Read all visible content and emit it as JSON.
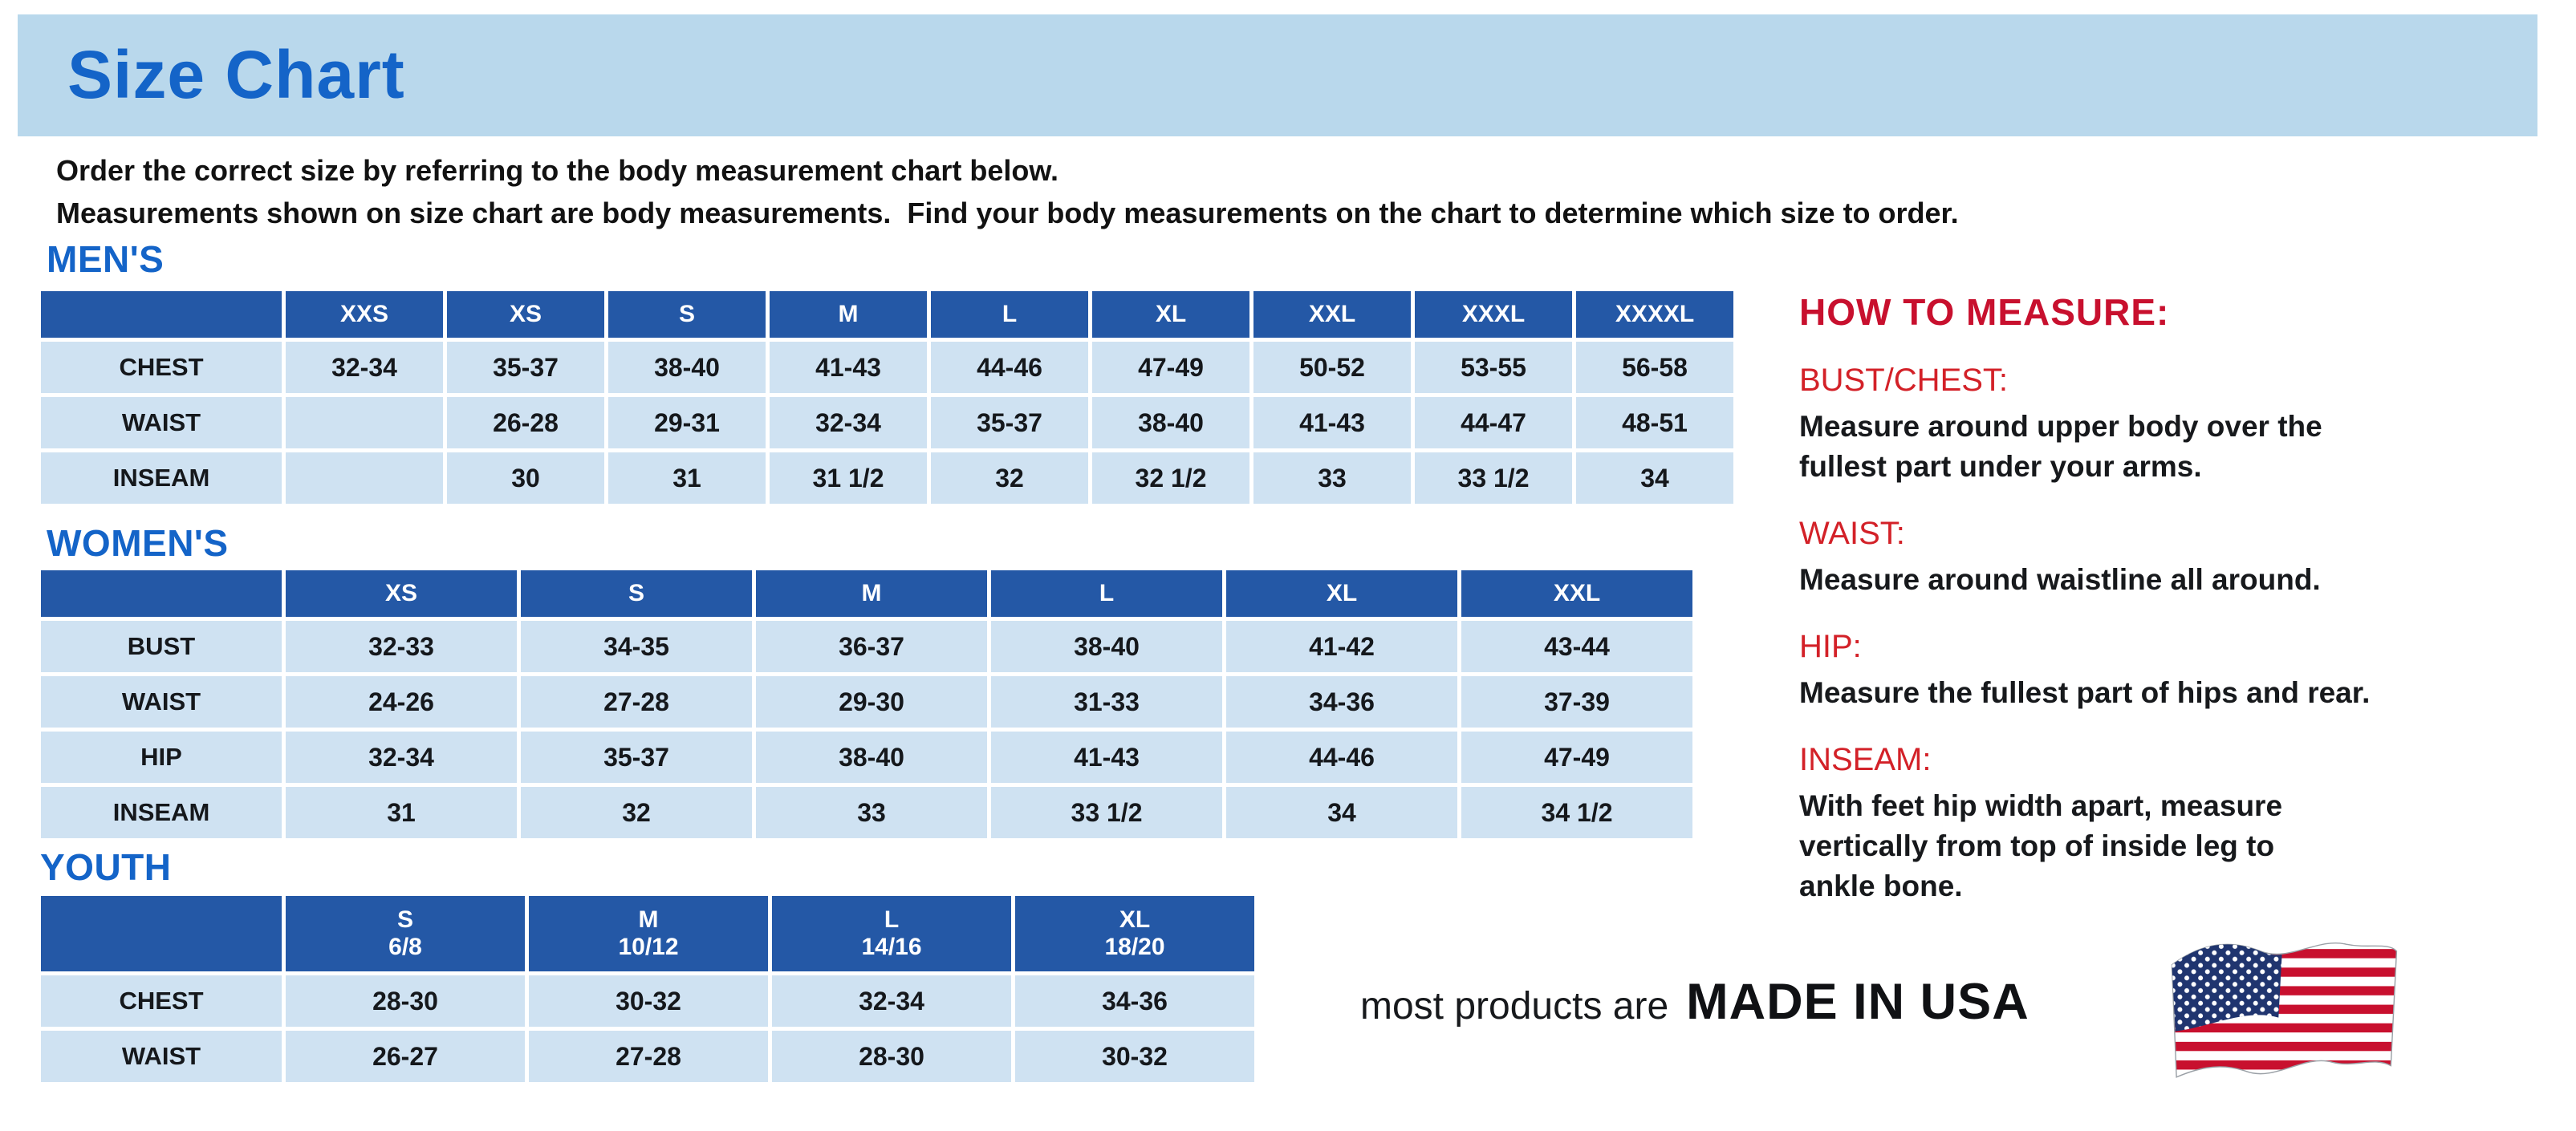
{
  "title": "Size Chart",
  "intro": {
    "line1": "Order the correct size by referring to the body measurement chart below.",
    "line2": "Measurements shown on size chart are body measurements.  Find your body measurements on the chart to determine which size to order."
  },
  "sections": {
    "mens": {
      "heading": "MEN'S",
      "table": {
        "header": [
          "",
          "XXS",
          "XS",
          "S",
          "M",
          "L",
          "XL",
          "XXL",
          "XXXL",
          "XXXXL"
        ],
        "rows": [
          {
            "label": "CHEST",
            "values": [
              "32-34",
              "35-37",
              "38-40",
              "41-43",
              "44-46",
              "47-49",
              "50-52",
              "53-55",
              "56-58"
            ]
          },
          {
            "label": "WAIST",
            "values": [
              "",
              "26-28",
              "29-31",
              "32-34",
              "35-37",
              "38-40",
              "41-43",
              "44-47",
              "48-51"
            ]
          },
          {
            "label": "INSEAM",
            "values": [
              "",
              "30",
              "31",
              "31 1/2",
              "32",
              "32 1/2",
              "33",
              "33 1/2",
              "34"
            ]
          }
        ]
      }
    },
    "womens": {
      "heading": "WOMEN'S",
      "table": {
        "header": [
          "",
          "XS",
          "S",
          "M",
          "L",
          "XL",
          "XXL"
        ],
        "rows": [
          {
            "label": "BUST",
            "values": [
              "32-33",
              "34-35",
              "36-37",
              "38-40",
              "41-42",
              "43-44"
            ]
          },
          {
            "label": "WAIST",
            "values": [
              "24-26",
              "27-28",
              "29-30",
              "31-33",
              "34-36",
              "37-39"
            ]
          },
          {
            "label": "HIP",
            "values": [
              "32-34",
              "35-37",
              "38-40",
              "41-43",
              "44-46",
              "47-49"
            ]
          },
          {
            "label": "INSEAM",
            "values": [
              "31",
              "32",
              "33",
              "33 1/2",
              "34",
              "34 1/2"
            ]
          }
        ]
      }
    },
    "youth": {
      "heading": "YOUTH",
      "table": {
        "header": [
          "",
          "S\n6/8",
          "M\n10/12",
          "L\n14/16",
          "XL\n18/20"
        ],
        "rows": [
          {
            "label": "CHEST",
            "values": [
              "28-30",
              "30-32",
              "32-34",
              "34-36"
            ]
          },
          {
            "label": "WAIST",
            "values": [
              "26-27",
              "27-28",
              "28-30",
              "30-32"
            ]
          }
        ]
      }
    }
  },
  "measure": {
    "heading": "HOW TO MEASURE:",
    "items": [
      {
        "term": "BUST/CHEST:",
        "desc": "Measure around upper body over the\nfullest part under your arms."
      },
      {
        "term": "WAIST:",
        "desc": "Measure around waistline all around."
      },
      {
        "term": "HIP:",
        "desc": "Measure the fullest part of hips and rear."
      },
      {
        "term": "INSEAM:",
        "desc": "With feet hip width apart, measure\nvertically from top of inside leg to\nankle bone."
      }
    ]
  },
  "footer": {
    "prefix": "most products are",
    "made_in": "MADE IN USA",
    "flag_icon": "usa-flag"
  },
  "colors": {
    "titlebar_bg": "#b9d8ec",
    "title_blue": "#1464c8",
    "table_header_blue": "#2458a6",
    "table_cell_blue": "#cfe2f2",
    "accent_red": "#d32128"
  }
}
